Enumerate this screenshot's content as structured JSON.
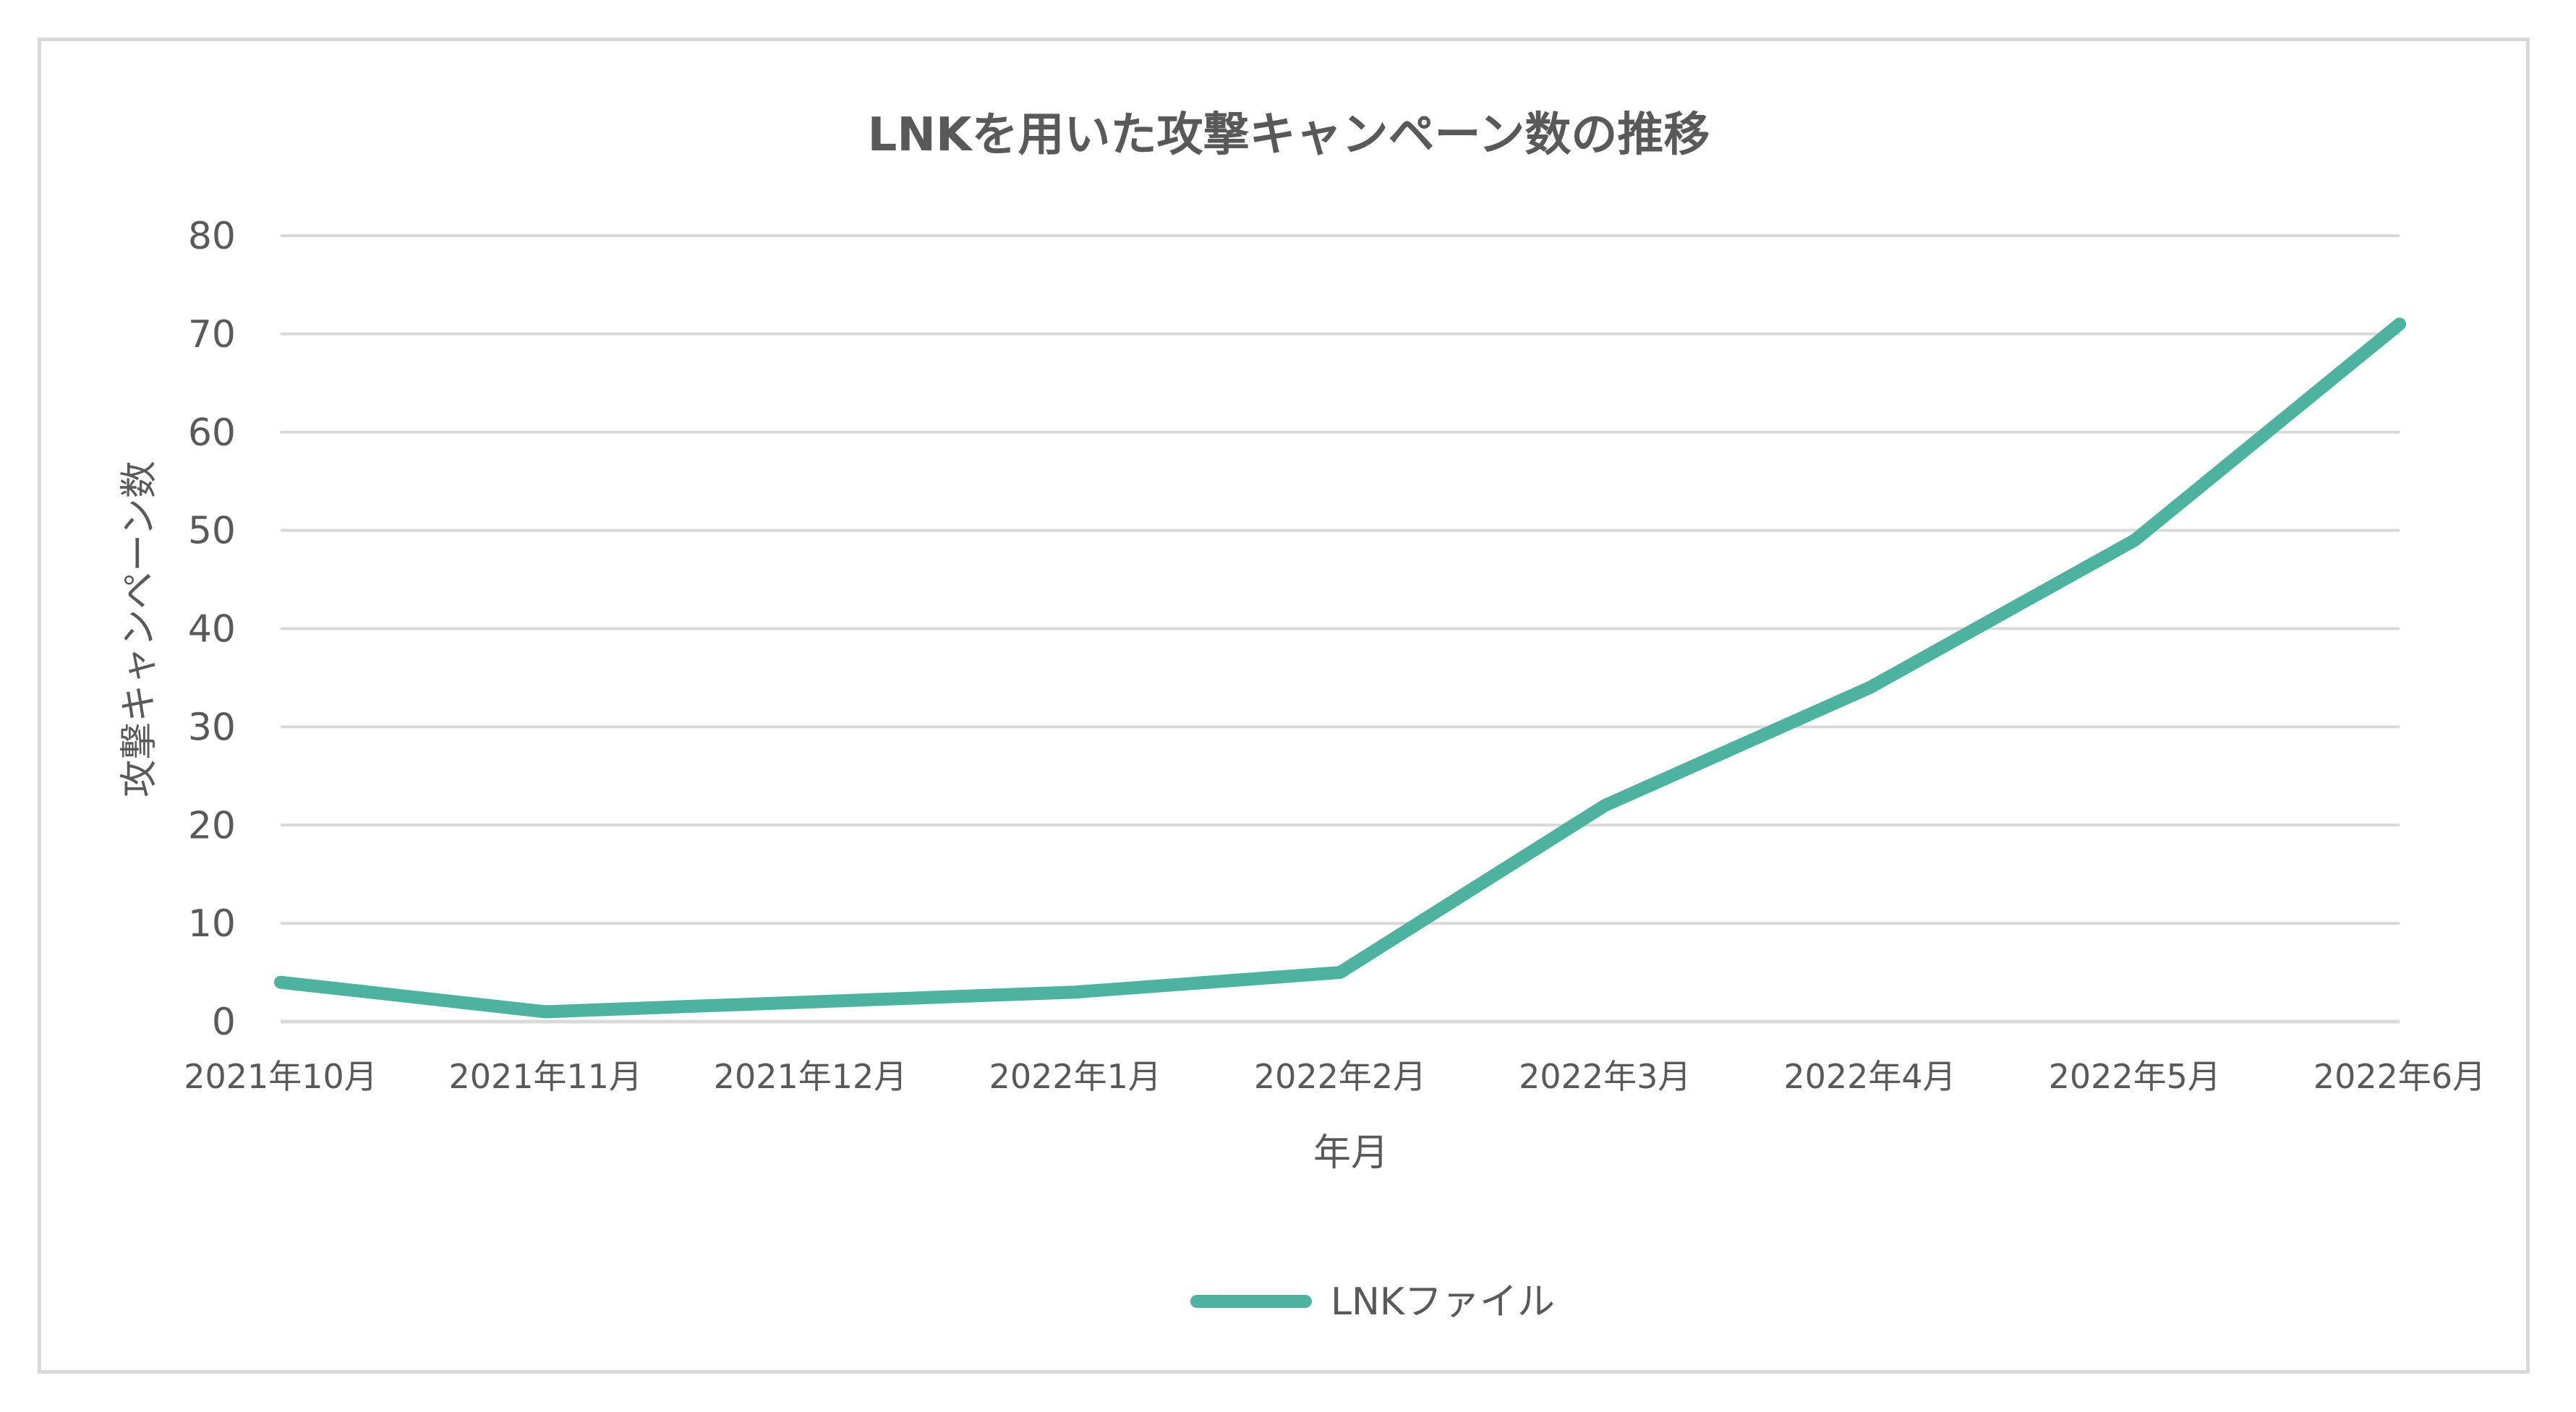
{
  "chart_data": {
    "type": "line",
    "title": "LNKを用いた攻撃キャンペーン数の推移",
    "xlabel": "年月",
    "ylabel": "攻撃キャンペーン数",
    "categories": [
      "2021年10月",
      "2021年11月",
      "2021年12月",
      "2022年1月",
      "2022年2月",
      "2022年3月",
      "2022年4月",
      "2022年5月",
      "2022年6月"
    ],
    "series": [
      {
        "name": "LNKファイル",
        "values": [
          4,
          1,
          2,
          3,
          5,
          22,
          34,
          49,
          71
        ],
        "color": "#4db39e"
      }
    ],
    "ylim": [
      0,
      80
    ],
    "yticks": [
      0,
      10,
      20,
      30,
      40,
      50,
      60,
      70,
      80
    ],
    "grid": true,
    "legend_position": "bottom"
  },
  "colors": {
    "frame_border": "#d9d9d9",
    "gridline": "#d9d9d9",
    "title_text": "#595959",
    "axis_text": "#595959",
    "series_line": "#4db39e"
  }
}
